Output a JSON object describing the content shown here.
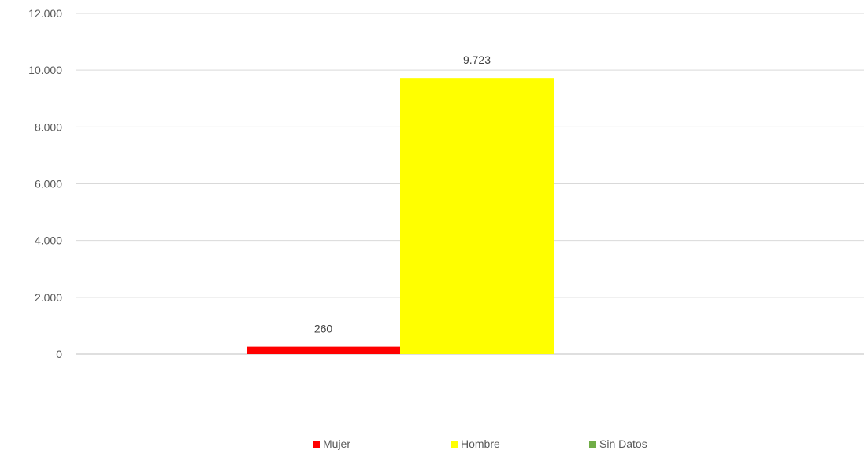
{
  "chart_data": {
    "type": "bar",
    "categories": [
      ""
    ],
    "series": [
      {
        "name": "Mujer",
        "values": [
          260
        ],
        "color": "#ff0000",
        "data_label": "260"
      },
      {
        "name": "Hombre",
        "values": [
          9723
        ],
        "color": "#ffff00",
        "data_label": "9.723"
      },
      {
        "name": "Sin Datos",
        "values": [
          0
        ],
        "color": "#70ad47",
        "data_label": ""
      }
    ],
    "ylim": [
      0,
      12000
    ],
    "yticks": [
      0,
      2000,
      4000,
      6000,
      8000,
      10000,
      12000
    ],
    "ytick_labels": [
      "0",
      "2.000",
      "4.000",
      "6.000",
      "8.000",
      "10.000",
      "12.000"
    ],
    "grid": true,
    "legend_position": "bottom",
    "title": "",
    "xlabel": "",
    "ylabel": ""
  }
}
